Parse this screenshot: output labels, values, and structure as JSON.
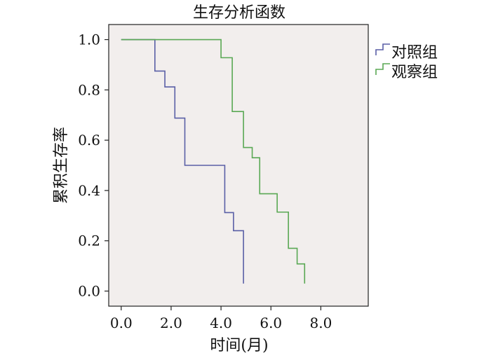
{
  "chart_data": {
    "type": "line",
    "step": true,
    "title": "生存分析函数",
    "xlabel": "时间(月)",
    "ylabel": "累积生存率",
    "xlim": [
      -0.5,
      9.9
    ],
    "ylim": [
      -0.06,
      1.06
    ],
    "xticks": [
      "0.0",
      "2.0",
      "4.0",
      "6.0",
      "8.0"
    ],
    "xtick_values": [
      0,
      2,
      4,
      6,
      8
    ],
    "yticks": [
      "0.0",
      "0.2",
      "0.4",
      "0.6",
      "0.8",
      "1.0"
    ],
    "ytick_values": [
      0,
      0.2,
      0.4,
      0.6,
      0.8,
      1.0
    ],
    "grid": false,
    "legend_position": "right",
    "plot_background": "#f2eeed",
    "series": [
      {
        "name": "对照组",
        "color": "#5a5fa6",
        "x": [
          0.0,
          1.35,
          1.75,
          2.15,
          2.55,
          4.15,
          4.5,
          4.9,
          4.9
        ],
        "y": [
          1.0,
          0.875,
          0.812,
          0.688,
          0.5,
          0.312,
          0.24,
          0.24,
          0.03
        ]
      },
      {
        "name": "观察组",
        "color": "#5aa854",
        "x": [
          0.0,
          4.0,
          4.45,
          4.9,
          5.25,
          5.55,
          6.25,
          6.7,
          7.05,
          7.35,
          7.35
        ],
        "y": [
          1.0,
          0.928,
          0.714,
          0.571,
          0.53,
          0.387,
          0.314,
          0.17,
          0.108,
          0.108,
          0.03
        ]
      }
    ]
  }
}
